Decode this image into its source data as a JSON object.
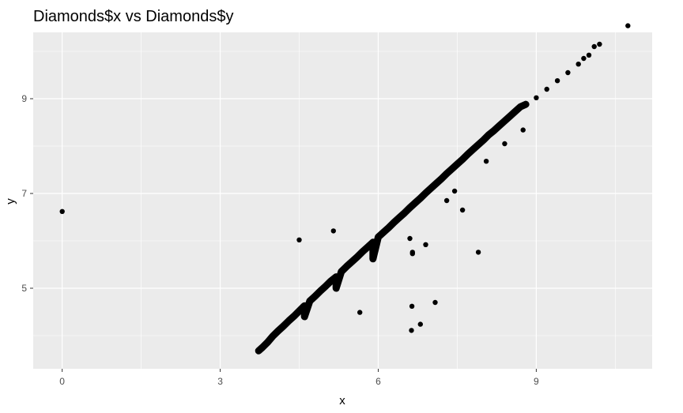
{
  "chart_data": {
    "type": "scatter",
    "title": "Diamonds$x vs Diamonds$y",
    "xlabel": "x",
    "ylabel": "y",
    "xlim": [
      -0.55,
      11.2
    ],
    "ylim": [
      3.3,
      10.4
    ],
    "x_ticks": [
      0,
      3,
      6,
      9
    ],
    "x_tick_labels": [
      "0",
      "3",
      "6",
      "9"
    ],
    "y_ticks": [
      5,
      7,
      9
    ],
    "y_tick_labels": [
      "5",
      "7",
      "9"
    ],
    "grid": true,
    "legend": "none",
    "colors": {
      "panel": "#ebebeb",
      "grid": "#ffffff",
      "point": "#000000"
    },
    "points": [
      [
        0.0,
        6.62
      ],
      [
        3.73,
        3.68
      ],
      [
        3.8,
        3.75
      ],
      [
        3.9,
        3.86
      ],
      [
        4.0,
        3.99
      ],
      [
        4.1,
        4.1
      ],
      [
        4.2,
        4.2
      ],
      [
        4.3,
        4.31
      ],
      [
        4.4,
        4.41
      ],
      [
        4.5,
        4.52
      ],
      [
        4.6,
        4.63
      ],
      [
        4.7,
        4.73
      ],
      [
        4.8,
        4.83
      ],
      [
        4.9,
        4.94
      ],
      [
        5.0,
        5.04
      ],
      [
        5.1,
        5.15
      ],
      [
        5.2,
        5.24
      ],
      [
        5.3,
        5.35
      ],
      [
        5.4,
        5.46
      ],
      [
        5.5,
        5.56
      ],
      [
        5.6,
        5.66
      ],
      [
        5.7,
        5.77
      ],
      [
        5.8,
        5.87
      ],
      [
        5.9,
        5.97
      ],
      [
        6.0,
        6.08
      ],
      [
        6.1,
        6.18
      ],
      [
        6.2,
        6.28
      ],
      [
        6.3,
        6.39
      ],
      [
        6.4,
        6.49
      ],
      [
        6.5,
        6.59
      ],
      [
        6.6,
        6.7
      ],
      [
        6.7,
        6.8
      ],
      [
        6.8,
        6.9
      ],
      [
        6.9,
        7.01
      ],
      [
        7.0,
        7.11
      ],
      [
        7.1,
        7.21
      ],
      [
        7.2,
        7.31
      ],
      [
        7.3,
        7.42
      ],
      [
        7.4,
        7.52
      ],
      [
        7.5,
        7.62
      ],
      [
        7.6,
        7.72
      ],
      [
        7.7,
        7.83
      ],
      [
        7.8,
        7.93
      ],
      [
        7.9,
        8.03
      ],
      [
        8.0,
        8.13
      ],
      [
        8.1,
        8.24
      ],
      [
        8.2,
        8.33
      ],
      [
        8.3,
        8.43
      ],
      [
        8.4,
        8.53
      ],
      [
        8.5,
        8.63
      ],
      [
        8.6,
        8.73
      ],
      [
        8.7,
        8.83
      ],
      [
        8.8,
        8.88
      ],
      [
        9.0,
        9.02
      ],
      [
        9.2,
        9.2
      ],
      [
        9.4,
        9.38
      ],
      [
        9.6,
        9.55
      ],
      [
        9.8,
        9.73
      ],
      [
        9.9,
        9.85
      ],
      [
        10.0,
        9.92
      ],
      [
        10.1,
        10.1
      ],
      [
        10.2,
        10.15
      ],
      [
        10.74,
        10.54
      ],
      [
        4.5,
        6.02
      ],
      [
        5.15,
        6.21
      ],
      [
        5.65,
        4.49
      ],
      [
        6.64,
        4.62
      ],
      [
        6.63,
        4.11
      ],
      [
        6.8,
        4.24
      ],
      [
        7.08,
        4.7
      ],
      [
        6.65,
        5.73
      ],
      [
        6.65,
        5.76
      ],
      [
        6.9,
        5.92
      ],
      [
        7.6,
        6.65
      ],
      [
        7.9,
        5.76
      ],
      [
        8.75,
        8.34
      ],
      [
        5.9,
        5.62
      ],
      [
        6.6,
        6.05
      ],
      [
        4.6,
        4.4
      ],
      [
        5.2,
        5.0
      ],
      [
        7.3,
        6.85
      ],
      [
        7.45,
        7.05
      ],
      [
        8.05,
        7.68
      ],
      [
        8.4,
        8.05
      ]
    ]
  }
}
